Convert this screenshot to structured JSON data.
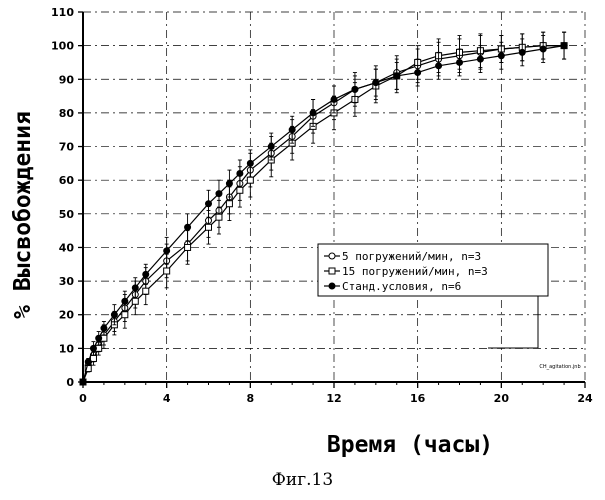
{
  "chart_data": {
    "type": "line",
    "xlabel": "Время (часы)",
    "ylabel": "% Высвобождения",
    "xlim": [
      0,
      24
    ],
    "ylim": [
      0,
      110
    ],
    "x_ticks": [
      "0",
      "4",
      "8",
      "12",
      "16",
      "20",
      "24"
    ],
    "y_ticks": [
      "0",
      "10",
      "20",
      "30",
      "40",
      "50",
      "60",
      "70",
      "80",
      "90",
      "100",
      "110"
    ],
    "grid": true,
    "legend_position": "center-right",
    "watermark": "CH_agitation.jnb",
    "series": [
      {
        "name": "5 погружений/мин, n=3",
        "marker": "open-circle",
        "x": [
          0,
          0.25,
          0.5,
          0.75,
          1,
          1.5,
          2,
          2.5,
          3,
          4,
          5,
          6,
          6.5,
          7,
          7.5,
          8,
          9,
          10,
          11,
          12,
          13,
          14,
          15,
          16,
          17,
          18,
          19,
          20,
          21,
          22,
          23
        ],
        "y": [
          0,
          5,
          8,
          11,
          14,
          18,
          22,
          26,
          30,
          36,
          41,
          48,
          51,
          55,
          59,
          63,
          68,
          73,
          79,
          83,
          87,
          89,
          92,
          94,
          96,
          97,
          98,
          99,
          99.5,
          100,
          100
        ],
        "error": [
          0,
          1,
          2,
          2,
          3,
          3,
          4,
          4,
          4,
          5,
          5,
          5,
          5,
          5,
          5,
          5,
          5,
          5,
          5,
          5,
          5,
          5,
          5,
          5,
          5,
          5,
          5,
          4,
          4,
          4,
          4
        ]
      },
      {
        "name": "15 погружений/мин, n=3",
        "marker": "open-square",
        "x": [
          0,
          0.25,
          0.5,
          0.75,
          1,
          1.5,
          2,
          2.5,
          3,
          4,
          5,
          6,
          6.5,
          7,
          7.5,
          8,
          9,
          10,
          11,
          12,
          13,
          14,
          15,
          16,
          17,
          18,
          19,
          20,
          21,
          22,
          23
        ],
        "y": [
          0,
          4,
          7,
          10,
          13,
          17,
          20,
          24,
          27,
          33,
          40,
          46,
          49,
          53,
          57,
          60,
          66,
          71,
          76,
          80,
          84,
          88,
          91,
          95,
          97,
          98,
          98.5,
          99,
          99.5,
          100,
          100
        ],
        "error": [
          0,
          1,
          2,
          2,
          3,
          3,
          4,
          4,
          4,
          5,
          5,
          5,
          5,
          5,
          5,
          5,
          5,
          5,
          5,
          5,
          5,
          5,
          5,
          5,
          5,
          5,
          5,
          4,
          4,
          4,
          4
        ]
      },
      {
        "name": "Станд.условия, n=6",
        "marker": "filled-circle",
        "x": [
          0,
          0.25,
          0.5,
          0.75,
          1,
          1.5,
          2,
          2.5,
          3,
          4,
          5,
          6,
          6.5,
          7,
          7.5,
          8,
          9,
          10,
          11,
          12,
          13,
          14,
          15,
          16,
          17,
          18,
          19,
          20,
          21,
          22,
          23
        ],
        "y": [
          0,
          6,
          10,
          13,
          16,
          20,
          24,
          28,
          32,
          39,
          46,
          53,
          56,
          59,
          62,
          65,
          70,
          75,
          80,
          84,
          87,
          89,
          91,
          92,
          94,
          95,
          96,
          97,
          98,
          99,
          100
        ],
        "error": [
          0,
          1,
          2,
          2,
          2,
          3,
          3,
          3,
          3,
          4,
          4,
          4,
          4,
          4,
          4,
          4,
          4,
          4,
          4,
          4,
          4,
          4,
          4,
          4,
          4,
          4,
          4,
          4,
          4,
          4,
          4
        ]
      }
    ]
  },
  "caption": "Фиг.13"
}
